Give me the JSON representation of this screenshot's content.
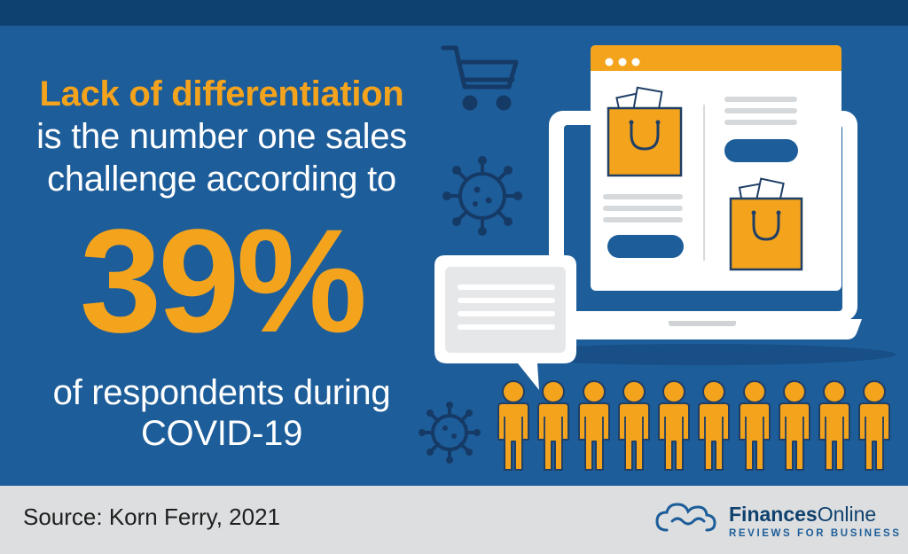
{
  "headline": {
    "accent": "Lack of differentiation",
    "line2": "is the number one sales",
    "line3": "challenge according to",
    "stat": "39%",
    "line5": "of respondents during",
    "line6": "COVID-19"
  },
  "footer": {
    "source": "Source: Korn Ferry, 2021",
    "brand_bold": "Finances",
    "brand_thin": "Online",
    "tagline": "REVIEWS FOR BUSINESS"
  },
  "colors": {
    "background": "#1d5d99",
    "top_band": "#0f416e",
    "accent": "#f4a31d",
    "footer_band": "#dcdedf"
  },
  "icons": [
    "shopping-cart-icon",
    "virus-icon",
    "laptop-icon",
    "shopping-bag-icon",
    "chat-bubble-icon",
    "person-icon",
    "cloud-logo-icon"
  ],
  "people_count": 10
}
